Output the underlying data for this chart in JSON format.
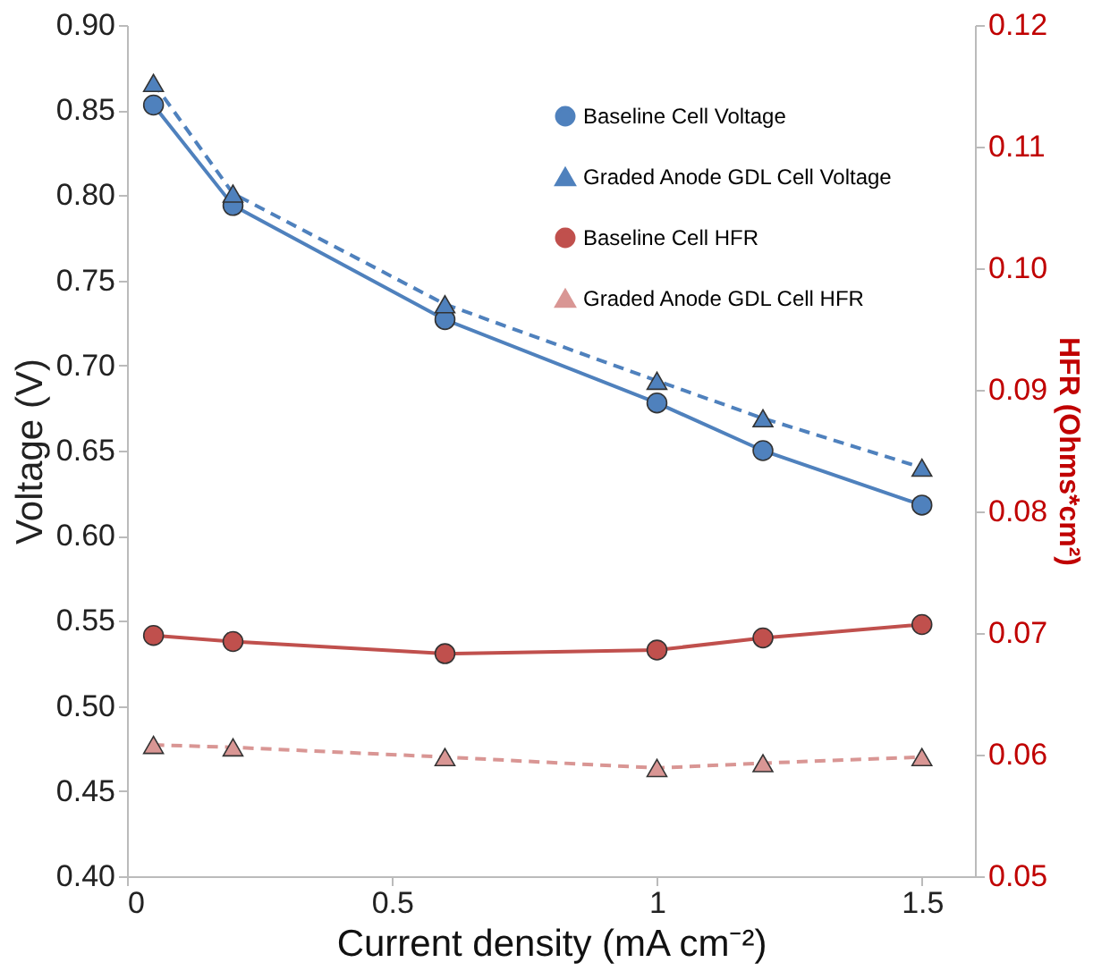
{
  "chart_data": {
    "type": "line",
    "xlabel": "Current density (mA cm⁻²)",
    "ylabel": "Voltage (V)",
    "y2label": "HFR (Ohms*cm²)",
    "x": [
      0.05,
      0.2,
      0.6,
      1.0,
      1.2,
      1.5
    ],
    "series": [
      {
        "name": "Baseline Cell Voltage",
        "color": "#4f81bd",
        "marker": "circle",
        "line_style": "solid",
        "values": [
          0.853,
          0.794,
          0.727,
          0.678,
          0.65,
          0.618
        ]
      },
      {
        "name": "Graded Anode GDL Cell Voltage",
        "color": "#4f81bd",
        "marker": "triangle",
        "line_style": "dashed",
        "values": [
          0.866,
          0.801,
          0.736,
          0.691,
          0.669,
          0.64
        ]
      },
      {
        "name": "Baseline Cell HFR",
        "color": "#c0504d",
        "marker": "circle",
        "line_style": "solid",
        "axis": "y2",
        "values": [
          0.0698,
          0.0693,
          0.0683,
          0.0686,
          0.0696,
          0.0707
        ]
      },
      {
        "name": "Graded Anode GDL Cell HFR",
        "color": "#d99694",
        "marker": "triangle",
        "line_style": "dashed",
        "axis": "y2",
        "values": [
          0.0608,
          0.0606,
          0.0598,
          0.0589,
          0.0593,
          0.0598
        ]
      }
    ],
    "xlim": [
      0,
      1.6
    ],
    "xticks": [
      0,
      0.5,
      1,
      1.5
    ],
    "ylim": [
      0.4,
      0.9
    ],
    "yticks": [
      {
        "value": 0.4,
        "label": "0.40"
      },
      0.45,
      {
        "value": 0.5,
        "label": "0.50"
      },
      0.55,
      {
        "value": 0.6,
        "label": "0.60"
      },
      0.65,
      {
        "value": 0.7,
        "label": "0.70"
      },
      0.75,
      {
        "value": 0.8,
        "label": "0.80"
      },
      0.85,
      {
        "value": 0.9,
        "label": "0.90"
      }
    ],
    "y2lim": [
      0.05,
      0.12
    ],
    "y2ticks": [
      0.05,
      0.06,
      0.07,
      0.08,
      0.09,
      {
        "value": 0.1,
        "label": "0.10"
      },
      0.11,
      0.12
    ],
    "grid": false,
    "legend": "top right"
  }
}
